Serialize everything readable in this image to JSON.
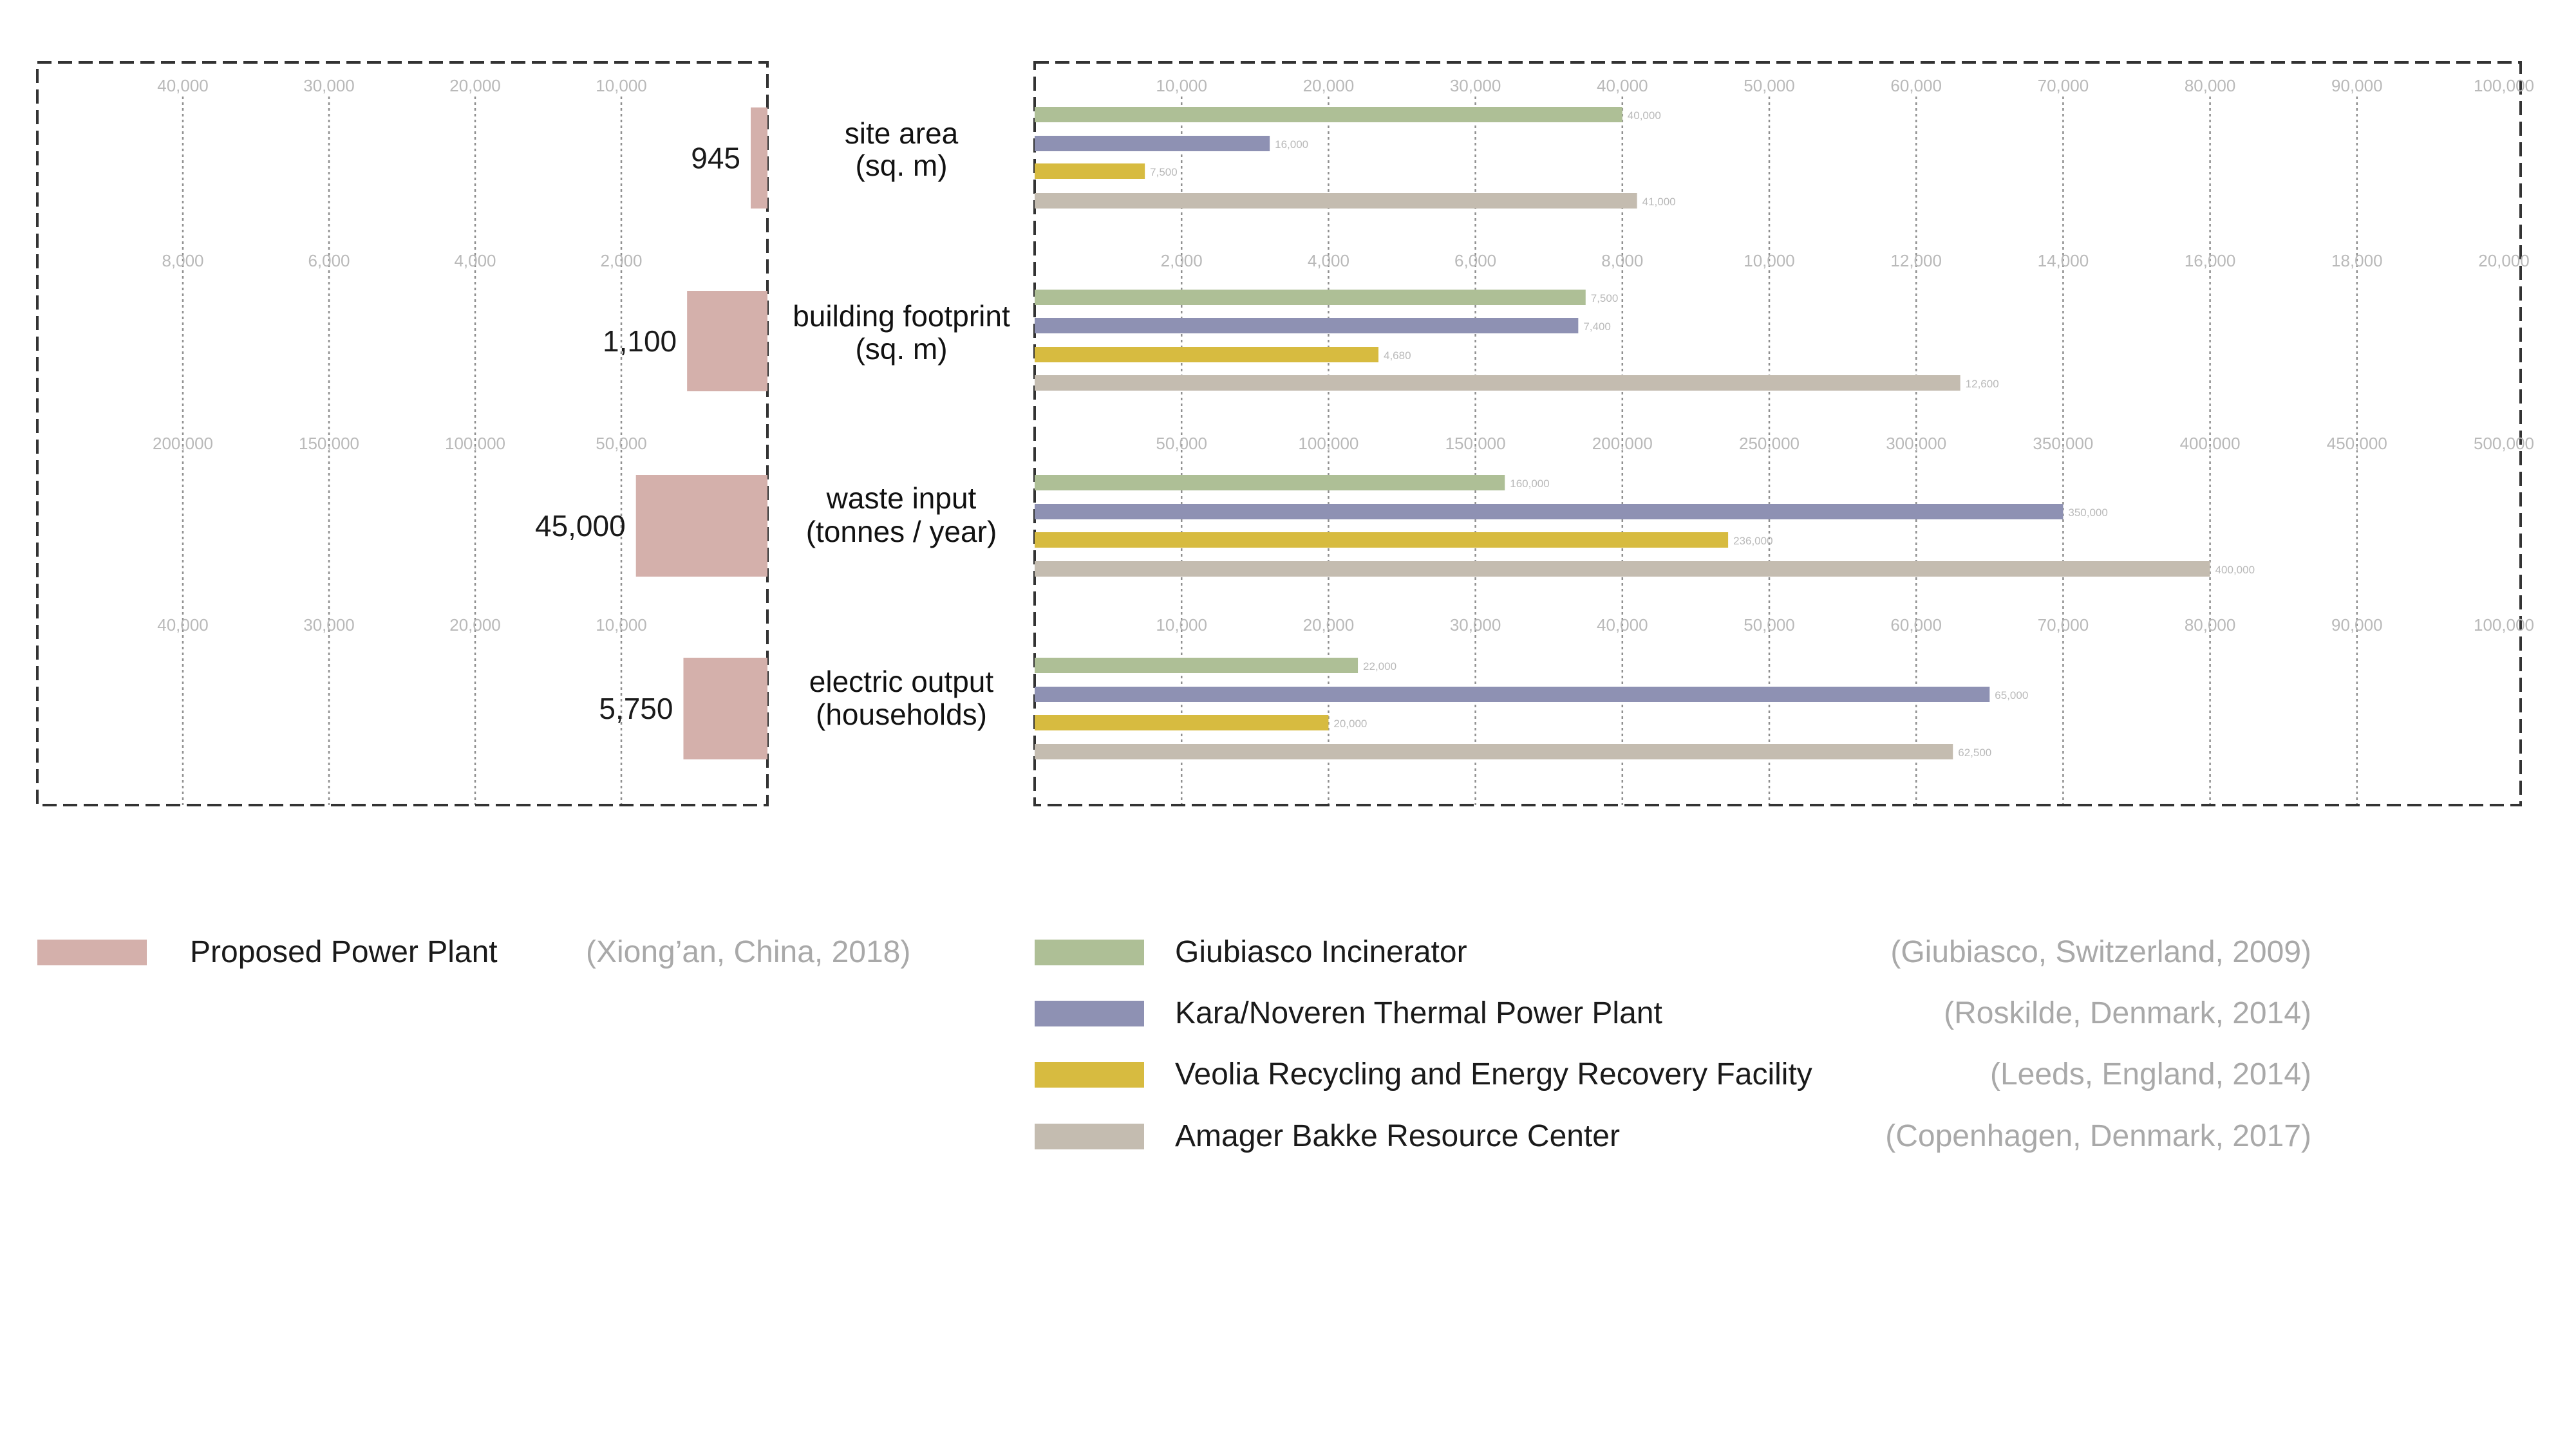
{
  "colors": {
    "proposed": "#d4b0ab",
    "giubiasco": "#aebf96",
    "kara": "#8e91b3",
    "veolia": "#d7bb40",
    "amager": "#c4bcb0",
    "grid": "#8f8f8f",
    "frame": "#333333"
  },
  "chart_data": {
    "type": "bar",
    "metrics": [
      {
        "label_lines": [
          "site area",
          "(sq. m)"
        ],
        "left_ticks": [
          "40,000",
          "30,000",
          "20,000",
          "10,000"
        ],
        "left_max": 50000,
        "proposed_value": 945,
        "proposed_label": "945",
        "right_ticks": [
          "10,000",
          "20,000",
          "30,000",
          "40,000",
          "50,000",
          "60,000",
          "70,000",
          "80,000",
          "90,000",
          "100,000"
        ],
        "right_max": 100000,
        "values": [
          40000,
          16000,
          7500,
          41000
        ],
        "value_labels": [
          "40,000",
          "16,000",
          "7,500",
          "41,000"
        ]
      },
      {
        "label_lines": [
          "building footprint",
          "(sq. m)"
        ],
        "left_ticks": [
          "8,000",
          "6,000",
          "4,000",
          "2,000"
        ],
        "left_max": 10000,
        "proposed_value": 1100,
        "proposed_label": "1,100",
        "right_ticks": [
          "2,000",
          "4,000",
          "6,000",
          "8,000",
          "10,000",
          "12,000",
          "14,000",
          "16,000",
          "18,000",
          "20,000"
        ],
        "right_max": 20000,
        "values": [
          7500,
          7400,
          4680,
          12600
        ],
        "value_labels": [
          "7,500",
          "7,400",
          "4,680",
          "12,600"
        ]
      },
      {
        "label_lines": [
          "waste input",
          "(tonnes / year)"
        ],
        "left_ticks": [
          "200,000",
          "150,000",
          "100,000",
          "50,000"
        ],
        "left_max": 250000,
        "proposed_value": 45000,
        "proposed_label": "45,000",
        "right_ticks": [
          "50,000",
          "100,000",
          "150,000",
          "200,000",
          "250,000",
          "300,000",
          "350,000",
          "400,000",
          "450,000",
          "500,000"
        ],
        "right_max": 500000,
        "values": [
          160000,
          350000,
          236000,
          400000
        ],
        "value_labels": [
          "160,000",
          "350,000",
          "236,000",
          "400,000"
        ]
      },
      {
        "label_lines": [
          "electric output",
          "(households)"
        ],
        "left_ticks": [
          "40,000",
          "30,000",
          "20,000",
          "10,000"
        ],
        "left_max": 50000,
        "proposed_value": 5750,
        "proposed_label": "5,750",
        "right_ticks": [
          "10,000",
          "20,000",
          "30,000",
          "40,000",
          "50,000",
          "60,000",
          "70,000",
          "80,000",
          "90,000",
          "100,000"
        ],
        "right_max": 100000,
        "values": [
          22000,
          65000,
          20000,
          62500
        ],
        "value_labels": [
          "22,000",
          "65,000",
          "20,000",
          "62,500"
        ]
      }
    ]
  },
  "legend": {
    "proposed": {
      "name": "Proposed Power Plant",
      "place": "(Xiong’an, China, 2018)"
    },
    "series": [
      {
        "key": "giubiasco",
        "name": "Giubiasco Incinerator",
        "place": "(Giubiasco, Switzerland, 2009)"
      },
      {
        "key": "kara",
        "name": "Kara/Noveren Thermal Power Plant",
        "place": "(Roskilde, Denmark, 2014)"
      },
      {
        "key": "veolia",
        "name": "Veolia Recycling and Energy Recovery Facility",
        "place": "(Leeds, England, 2014)"
      },
      {
        "key": "amager",
        "name": "Amager Bakke Resource Center",
        "place": "(Copenhagen, Denmark, 2017)"
      }
    ]
  }
}
